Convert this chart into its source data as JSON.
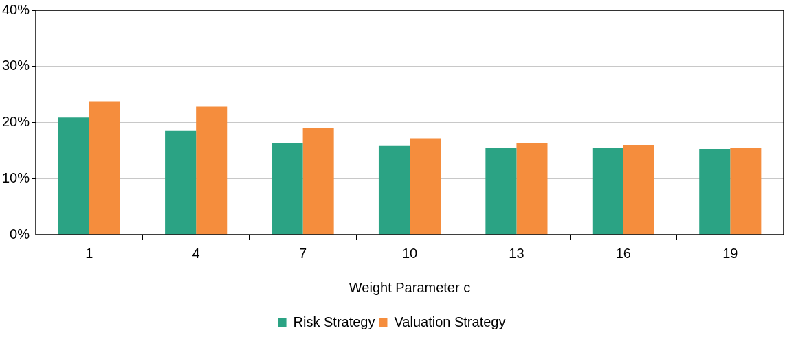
{
  "chart_data": {
    "type": "bar",
    "xlabel": "Weight Parameter c",
    "categories": [
      "1",
      "4",
      "7",
      "10",
      "13",
      "16",
      "19"
    ],
    "series": [
      {
        "name": "Risk Strategy",
        "color": "#2ba384",
        "values": [
          20.9,
          18.5,
          16.4,
          15.8,
          15.5,
          15.4,
          15.3
        ]
      },
      {
        "name": "Valuation Strategy",
        "color": "#f58d3d",
        "values": [
          23.8,
          22.8,
          19.0,
          17.2,
          16.3,
          15.9,
          15.5
        ]
      }
    ],
    "ylim": [
      0,
      40
    ],
    "yticks": [
      {
        "value": 0,
        "label": "0%"
      },
      {
        "value": 10,
        "label": "10%"
      },
      {
        "value": 20,
        "label": "20%"
      },
      {
        "value": 30,
        "label": "30%"
      },
      {
        "value": 40,
        "label": "40%"
      }
    ],
    "grid": "y",
    "legend": "bottom"
  }
}
